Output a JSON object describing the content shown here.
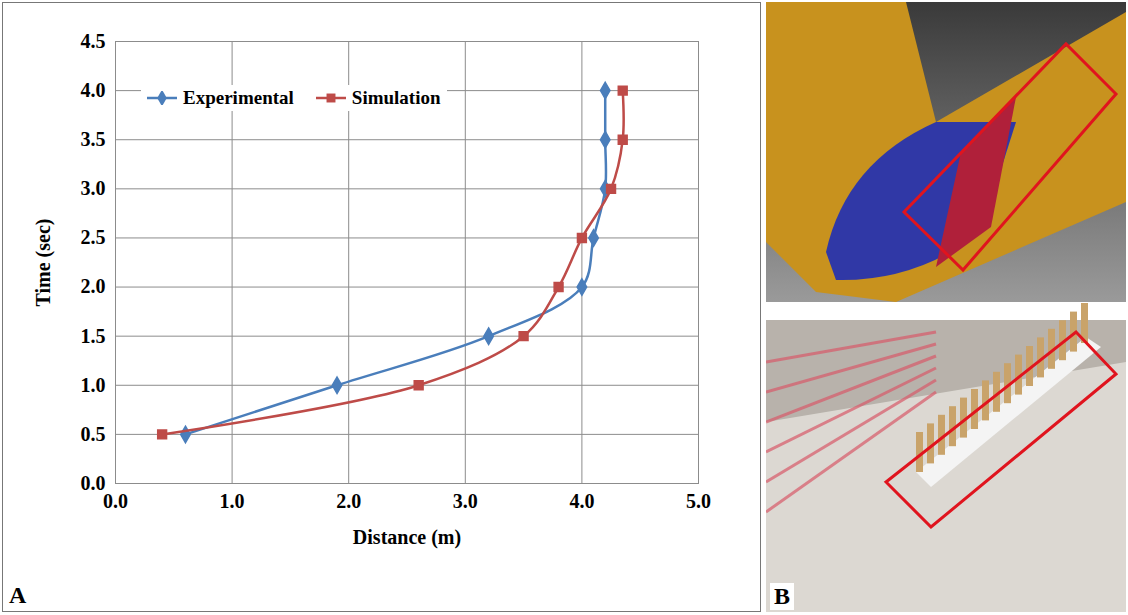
{
  "chart_data": {
    "type": "line",
    "panel_label": "A",
    "x_label": "Distance (m)",
    "y_label": "Time (sec)",
    "series": [
      {
        "name": "Experimental",
        "color": "#4a7ebb",
        "marker": "diamond",
        "line_style": "solid",
        "x": [
          0.6,
          1.9,
          3.2,
          4.0,
          4.1,
          4.2,
          4.2,
          4.2
        ],
        "y": [
          0.5,
          1.0,
          1.5,
          2.0,
          2.5,
          3.0,
          3.5,
          4.0
        ]
      },
      {
        "name": "Simulation",
        "color": "#be4b48",
        "marker": "square",
        "line_style": "solid",
        "x": [
          0.4,
          2.6,
          3.5,
          3.8,
          4.0,
          4.25,
          4.35,
          4.35
        ],
        "y": [
          0.5,
          1.0,
          1.5,
          2.0,
          2.5,
          3.0,
          3.5,
          4.0
        ]
      }
    ],
    "xlim": [
      0,
      5
    ],
    "xticks": [
      {
        "value": 0,
        "label": "0.0"
      },
      {
        "value": 1,
        "label": "1.0"
      },
      {
        "value": 2,
        "label": "2.0"
      },
      {
        "value": 3,
        "label": "3.0"
      },
      {
        "value": 4,
        "label": "4.0"
      },
      {
        "value": 5,
        "label": "5.0"
      }
    ],
    "ylim": [
      0,
      4.5
    ],
    "yticks": [
      {
        "value": 0,
        "label": "0.0"
      },
      0.5,
      {
        "value": 1,
        "label": "1.0"
      },
      1.5,
      {
        "value": 2,
        "label": "2.0"
      },
      2.5,
      {
        "value": 3,
        "label": "3.0"
      },
      3.5,
      {
        "value": 4,
        "label": "4.0"
      },
      4.5
    ],
    "grid": true,
    "legend": "upper left"
  },
  "panel_b": {
    "label": "B"
  }
}
